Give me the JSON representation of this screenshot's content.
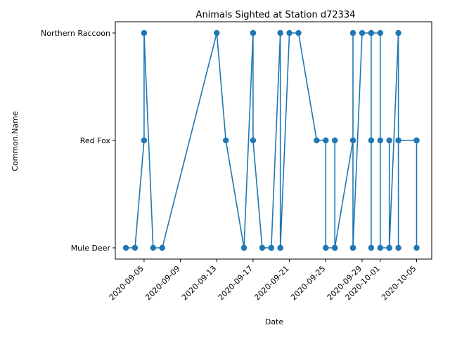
{
  "chart_data": {
    "type": "line",
    "title": "Animals Sighted at Station d72334",
    "xlabel": "Date",
    "ylabel": "Common.Name",
    "categories": [
      "Mule Deer",
      "Red Fox",
      "Northern Raccoon"
    ],
    "xlim": [
      "2020-09-01T20:00",
      "2020-10-06T16:00"
    ],
    "x_ticks": [
      "2020-09-05",
      "2020-09-09",
      "2020-09-13",
      "2020-09-17",
      "2020-09-21",
      "2020-09-25",
      "2020-09-29",
      "2020-10-01",
      "2020-10-05"
    ],
    "grid": false,
    "legend": "none",
    "color": "#1f77b4",
    "series": [
      {
        "points": [
          [
            "2020-09-03",
            "Mule Deer"
          ],
          [
            "2020-09-04",
            "Mule Deer"
          ],
          [
            "2020-09-05",
            "Red Fox"
          ],
          [
            "2020-09-05",
            "Northern Raccoon"
          ],
          [
            "2020-09-06",
            "Mule Deer"
          ],
          [
            "2020-09-07",
            "Mule Deer"
          ],
          [
            "2020-09-13",
            "Northern Raccoon"
          ],
          [
            "2020-09-14",
            "Red Fox"
          ],
          [
            "2020-09-16",
            "Mule Deer"
          ],
          [
            "2020-09-16",
            "Mule Deer"
          ],
          [
            "2020-09-17",
            "Northern Raccoon"
          ],
          [
            "2020-09-17",
            "Northern Raccoon"
          ],
          [
            "2020-09-17",
            "Red Fox"
          ],
          [
            "2020-09-18",
            "Mule Deer"
          ],
          [
            "2020-09-19",
            "Mule Deer"
          ],
          [
            "2020-09-19",
            "Mule Deer"
          ],
          [
            "2020-09-20",
            "Northern Raccoon"
          ],
          [
            "2020-09-20",
            "Mule Deer"
          ],
          [
            "2020-09-20",
            "Mule Deer"
          ],
          [
            "2020-09-21",
            "Northern Raccoon"
          ],
          [
            "2020-09-22",
            "Northern Raccoon"
          ],
          [
            "2020-09-24",
            "Red Fox"
          ],
          [
            "2020-09-25",
            "Red Fox"
          ],
          [
            "2020-09-25",
            "Mule Deer"
          ],
          [
            "2020-09-26",
            "Mule Deer"
          ],
          [
            "2020-09-26",
            "Red Fox"
          ],
          [
            "2020-09-26",
            "Mule Deer"
          ],
          [
            "2020-09-26",
            "Mule Deer"
          ],
          [
            "2020-09-28",
            "Red Fox"
          ],
          [
            "2020-09-28",
            "Mule Deer"
          ],
          [
            "2020-09-28",
            "Northern Raccoon"
          ],
          [
            "2020-09-28",
            "Mule Deer"
          ],
          [
            "2020-09-28",
            "Mule Deer"
          ],
          [
            "2020-09-29",
            "Northern Raccoon"
          ],
          [
            "2020-09-30",
            "Northern Raccoon"
          ],
          [
            "2020-09-30",
            "Red Fox"
          ],
          [
            "2020-09-30",
            "Mule Deer"
          ],
          [
            "2020-09-30",
            "Northern Raccoon"
          ],
          [
            "2020-10-01",
            "Northern Raccoon"
          ],
          [
            "2020-10-01",
            "Red Fox"
          ],
          [
            "2020-10-01",
            "Mule Deer"
          ],
          [
            "2020-10-02",
            "Mule Deer"
          ],
          [
            "2020-10-02",
            "Red Fox"
          ],
          [
            "2020-10-02",
            "Mule Deer"
          ],
          [
            "2020-10-03",
            "Northern Raccoon"
          ],
          [
            "2020-10-03",
            "Red Fox"
          ],
          [
            "2020-10-03",
            "Mule Deer"
          ],
          [
            "2020-10-03",
            "Red Fox"
          ],
          [
            "2020-10-05",
            "Red Fox"
          ],
          [
            "2020-10-05",
            "Red Fox"
          ],
          [
            "2020-10-05",
            "Mule Deer"
          ]
        ]
      }
    ]
  }
}
